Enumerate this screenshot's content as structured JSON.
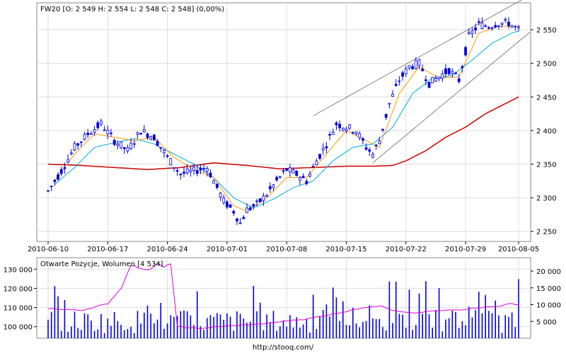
{
  "chart_data": [
    {
      "type": "candlestick",
      "title": "FW20 [O: 2 549  H: 2 554  L: 2 548  C: 2 548] (0,00%)",
      "x_tick_labels": [
        "2010-06-10",
        "2010-06-17",
        "2010-06-24",
        "2010-07-01",
        "2010-07-08",
        "2010-07-15",
        "2010-07-22",
        "2010-07-29",
        "2010-08-05"
      ],
      "y_ticks": [
        2250,
        2300,
        2350,
        2400,
        2450,
        2500,
        2550
      ],
      "y_tick_labels": [
        "2 250",
        "2 300",
        "2 350",
        "2 400",
        "2 450",
        "2 500",
        "2 550"
      ],
      "ylim": [
        2235,
        2590
      ],
      "grid": true,
      "colors": {
        "price": "#0000dd",
        "ma_short": "#ff9900",
        "ma_mid": "#00aadd",
        "ma_long": "#cc0000",
        "channel": "#666666"
      },
      "price_keypoints": [
        [
          0,
          2310
        ],
        [
          4,
          2340
        ],
        [
          8,
          2375
        ],
        [
          12,
          2395
        ],
        [
          16,
          2410
        ],
        [
          20,
          2385
        ],
        [
          24,
          2370
        ],
        [
          28,
          2400
        ],
        [
          32,
          2390
        ],
        [
          36,
          2360
        ],
        [
          40,
          2335
        ],
        [
          44,
          2340
        ],
        [
          48,
          2345
        ],
        [
          50,
          2325
        ],
        [
          53,
          2295
        ],
        [
          56,
          2280
        ],
        [
          58,
          2262
        ],
        [
          60,
          2282
        ],
        [
          63,
          2290
        ],
        [
          66,
          2305
        ],
        [
          69,
          2325
        ],
        [
          72,
          2342
        ],
        [
          75,
          2335
        ],
        [
          78,
          2325
        ],
        [
          81,
          2355
        ],
        [
          84,
          2380
        ],
        [
          87,
          2410
        ],
        [
          90,
          2405
        ],
        [
          93,
          2400
        ],
        [
          96,
          2375
        ],
        [
          98,
          2365
        ],
        [
          100,
          2385
        ],
        [
          103,
          2440
        ],
        [
          106,
          2475
        ],
        [
          109,
          2495
        ],
        [
          112,
          2500
        ],
        [
          115,
          2470
        ],
        [
          118,
          2480
        ],
        [
          121,
          2490
        ],
        [
          124,
          2475
        ],
        [
          127,
          2540
        ],
        [
          130,
          2558
        ],
        [
          133,
          2555
        ],
        [
          136,
          2560
        ],
        [
          139,
          2560
        ],
        [
          142,
          2550
        ]
      ],
      "ma_short_keypoints": [
        [
          2,
          2325
        ],
        [
          8,
          2365
        ],
        [
          14,
          2395
        ],
        [
          20,
          2390
        ],
        [
          26,
          2385
        ],
        [
          32,
          2390
        ],
        [
          38,
          2360
        ],
        [
          44,
          2342
        ],
        [
          50,
          2330
        ],
        [
          56,
          2288
        ],
        [
          60,
          2280
        ],
        [
          66,
          2300
        ],
        [
          72,
          2330
        ],
        [
          78,
          2330
        ],
        [
          84,
          2365
        ],
        [
          90,
          2400
        ],
        [
          96,
          2385
        ],
        [
          100,
          2375
        ],
        [
          106,
          2455
        ],
        [
          112,
          2495
        ],
        [
          118,
          2478
        ],
        [
          124,
          2480
        ],
        [
          130,
          2545
        ],
        [
          136,
          2555
        ],
        [
          142,
          2555
        ]
      ],
      "ma_mid_keypoints": [
        [
          2,
          2320
        ],
        [
          8,
          2345
        ],
        [
          14,
          2375
        ],
        [
          20,
          2382
        ],
        [
          26,
          2388
        ],
        [
          32,
          2380
        ],
        [
          38,
          2365
        ],
        [
          44,
          2350
        ],
        [
          50,
          2330
        ],
        [
          56,
          2300
        ],
        [
          62,
          2285
        ],
        [
          68,
          2298
        ],
        [
          74,
          2315
        ],
        [
          80,
          2325
        ],
        [
          86,
          2355
        ],
        [
          92,
          2375
        ],
        [
          98,
          2380
        ],
        [
          104,
          2405
        ],
        [
          110,
          2455
        ],
        [
          116,
          2478
        ],
        [
          122,
          2482
        ],
        [
          128,
          2505
        ],
        [
          134,
          2530
        ],
        [
          140,
          2545
        ],
        [
          142,
          2548
        ]
      ],
      "ma_long_keypoints": [
        [
          0,
          2350
        ],
        [
          10,
          2348
        ],
        [
          20,
          2345
        ],
        [
          30,
          2342
        ],
        [
          40,
          2345
        ],
        [
          50,
          2352
        ],
        [
          60,
          2348
        ],
        [
          70,
          2343
        ],
        [
          80,
          2345
        ],
        [
          90,
          2347
        ],
        [
          98,
          2347
        ],
        [
          104,
          2348
        ],
        [
          108,
          2355
        ],
        [
          114,
          2370
        ],
        [
          120,
          2390
        ],
        [
          126,
          2405
        ],
        [
          132,
          2425
        ],
        [
          138,
          2440
        ],
        [
          142,
          2450
        ]
      ],
      "channel_upper": [
        [
          80,
          2422
        ],
        [
          142,
          2595
        ]
      ],
      "channel_lower": [
        [
          98,
          2352
        ],
        [
          142,
          2540
        ]
      ],
      "n_days": 143
    },
    {
      "type": "bar",
      "title": "Otwarte Pozycje, Wolumen [4 534]",
      "left_y_ticks": [
        100000,
        110000,
        120000,
        130000
      ],
      "left_y_tick_labels": [
        "100 000",
        "110 000",
        "120 000",
        "130 000"
      ],
      "left_ylim": [
        94000,
        136000
      ],
      "right_y_ticks": [
        5000,
        10000,
        15000,
        20000
      ],
      "right_y_tick_labels": [
        "5 000",
        "10 000",
        "15 000",
        "20 000"
      ],
      "right_ylim": [
        0,
        24000
      ],
      "grid": true,
      "colors": {
        "volume": "#0000dd",
        "open_interest": "#dd00dd"
      },
      "open_interest_keypoints": [
        [
          0,
          109500
        ],
        [
          10,
          108500
        ],
        [
          18,
          112000
        ],
        [
          22,
          120000
        ],
        [
          25,
          132000
        ],
        [
          27,
          131000
        ],
        [
          29,
          130000
        ],
        [
          31,
          130000
        ],
        [
          33,
          133000
        ],
        [
          35,
          131000
        ],
        [
          37,
          133000
        ],
        [
          39,
          100000
        ],
        [
          45,
          99000
        ],
        [
          55,
          100500
        ],
        [
          65,
          101500
        ],
        [
          72,
          103000
        ],
        [
          78,
          104000
        ],
        [
          84,
          106000
        ],
        [
          90,
          108000
        ],
        [
          95,
          110000
        ],
        [
          100,
          111000
        ],
        [
          105,
          108000
        ],
        [
          110,
          107000
        ],
        [
          115,
          108000
        ],
        [
          120,
          108500
        ],
        [
          125,
          109000
        ],
        [
          130,
          110000
        ],
        [
          135,
          110500
        ],
        [
          140,
          112000
        ],
        [
          142,
          111500
        ]
      ]
    }
  ],
  "footer": {
    "url": "http://stooq.com/"
  }
}
